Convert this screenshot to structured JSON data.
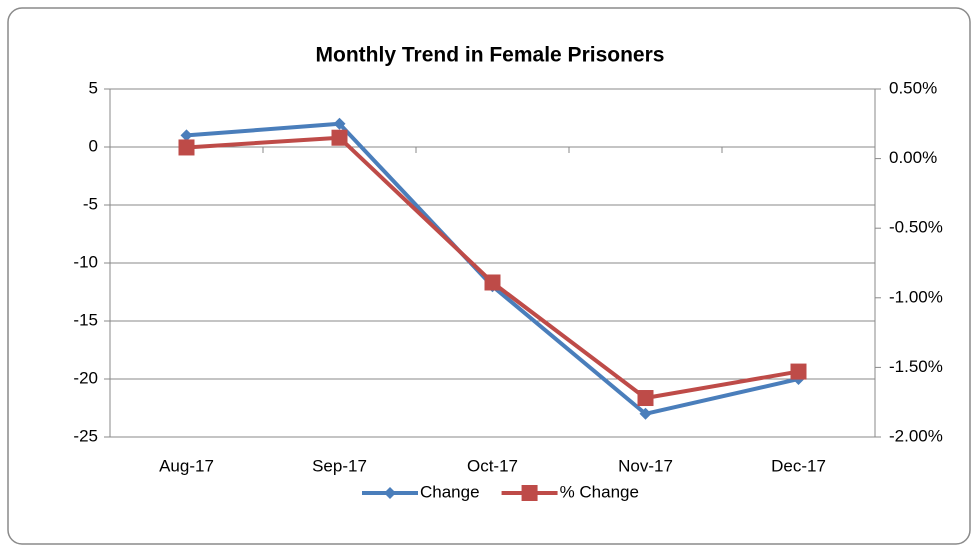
{
  "chart_data": {
    "type": "line",
    "title": "Monthly Trend in Female Prisoners",
    "categories": [
      "Aug-17",
      "Sep-17",
      "Oct-17",
      "Nov-17",
      "Dec-17"
    ],
    "series": [
      {
        "name": "Change",
        "color": "#4a7ebb",
        "marker": "diamond",
        "values": [
          1,
          2,
          -12,
          -23,
          -20
        ]
      },
      {
        "name": "% Change",
        "color": "#be4b48",
        "marker": "square",
        "axis": "y2",
        "values": [
          0.08,
          0.15,
          -0.89,
          -1.72,
          -1.53
        ]
      }
    ],
    "ylim": [
      -25,
      5
    ],
    "yticks": [
      -25,
      -20,
      -15,
      -10,
      -5,
      0,
      5
    ],
    "y2lim": [
      -2,
      0.5
    ],
    "y2ticks": [
      {
        "value": -2,
        "label": "-2.00%"
      },
      {
        "value": -1.5,
        "label": "-1.50%"
      },
      {
        "value": -1,
        "label": "-1.00%"
      },
      {
        "value": -0.5,
        "label": "-0.50%"
      },
      {
        "value": 0,
        "label": "0.00%"
      },
      {
        "value": 0.5,
        "label": "0.50%"
      }
    ],
    "grid": true,
    "legend": "bottom"
  }
}
